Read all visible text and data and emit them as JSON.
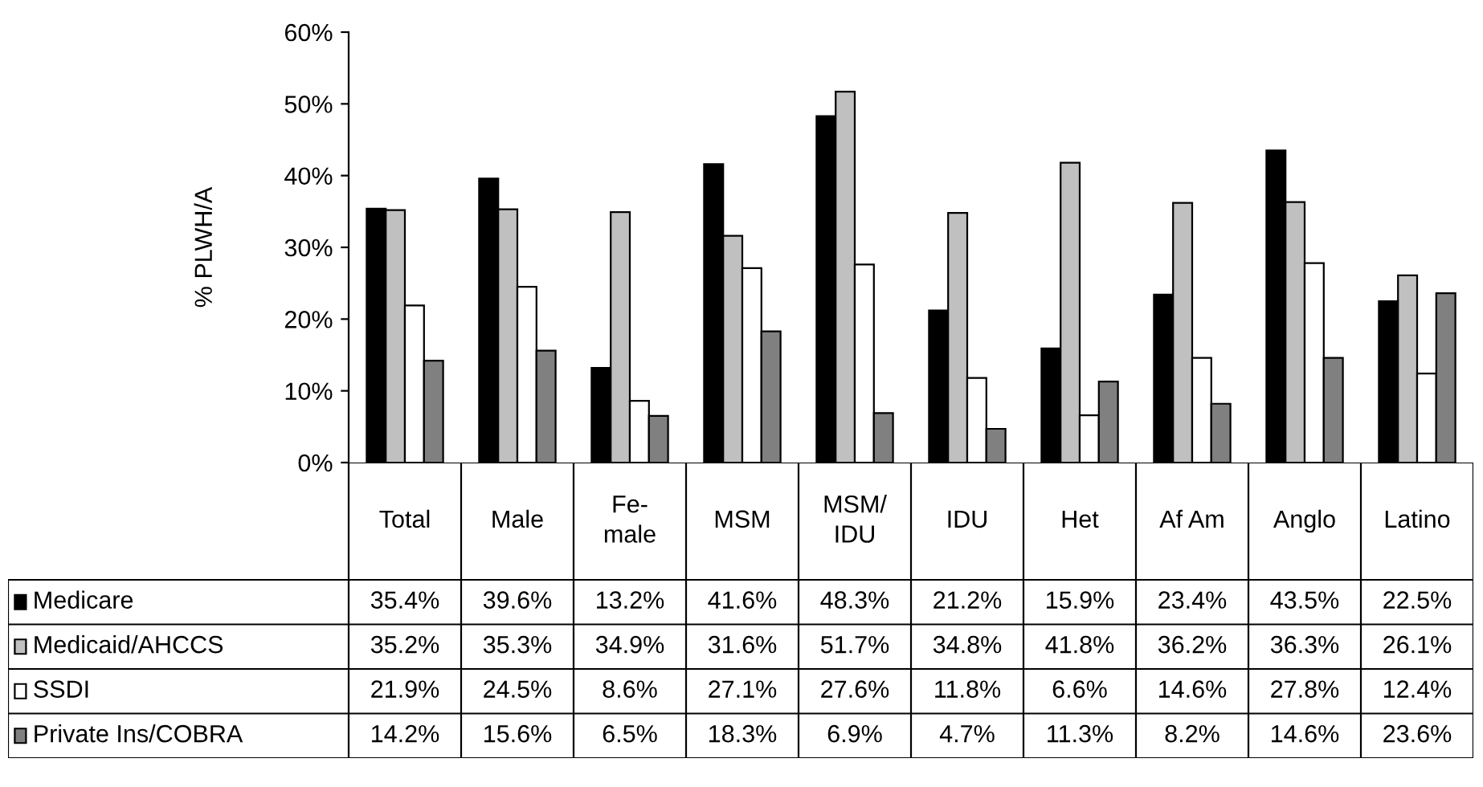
{
  "chart_data": {
    "type": "bar",
    "ylabel": "% PLWH/A",
    "categories": [
      "Total",
      "Male",
      "Fe-\nmale",
      "MSM",
      "MSM/\nIDU",
      "IDU",
      "Het",
      "Af Am",
      "Anglo",
      "Latino"
    ],
    "series": [
      {
        "name": "Medicare",
        "color": "#000000",
        "values": [
          35.4,
          39.6,
          13.2,
          41.6,
          48.3,
          21.2,
          15.9,
          23.4,
          43.5,
          22.5
        ],
        "value_labels": [
          "35.4%",
          "39.6%",
          "13.2%",
          "41.6%",
          "48.3%",
          "21.2%",
          "15.9%",
          "23.4%",
          "43.5%",
          "22.5%"
        ]
      },
      {
        "name": "Medicaid/AHCCS",
        "color": "#c0c0c0",
        "values": [
          35.2,
          35.3,
          34.9,
          31.6,
          51.7,
          34.8,
          41.8,
          36.2,
          36.3,
          26.1
        ],
        "value_labels": [
          "35.2%",
          "35.3%",
          "34.9%",
          "31.6%",
          "51.7%",
          "34.8%",
          "41.8%",
          "36.2%",
          "36.3%",
          "26.1%"
        ]
      },
      {
        "name": "SSDI",
        "color": "#ffffff",
        "values": [
          21.9,
          24.5,
          8.6,
          27.1,
          27.6,
          11.8,
          6.6,
          14.6,
          27.8,
          12.4
        ],
        "value_labels": [
          "21.9%",
          "24.5%",
          "8.6%",
          "27.1%",
          "27.6%",
          "11.8%",
          "6.6%",
          "14.6%",
          "27.8%",
          "12.4%"
        ]
      },
      {
        "name": "Private Ins/COBRA",
        "color": "#808080",
        "values": [
          14.2,
          15.6,
          6.5,
          18.3,
          6.9,
          4.7,
          11.3,
          8.2,
          14.6,
          23.6
        ],
        "value_labels": [
          "14.2%",
          "15.6%",
          "6.5%",
          "18.3%",
          "6.9%",
          "4.7%",
          "11.3%",
          "8.2%",
          "14.6%",
          "23.6%"
        ]
      }
    ],
    "ylim": [
      0,
      60
    ],
    "yticks": [
      {
        "value": 0,
        "label": "0%"
      },
      {
        "value": 10,
        "label": "10%"
      },
      {
        "value": 20,
        "label": "20%"
      },
      {
        "value": 30,
        "label": "30%"
      },
      {
        "value": 40,
        "label": "40%"
      },
      {
        "value": 50,
        "label": "50%"
      },
      {
        "value": 60,
        "label": "60%"
      }
    ],
    "grid": false,
    "legend": "left"
  }
}
